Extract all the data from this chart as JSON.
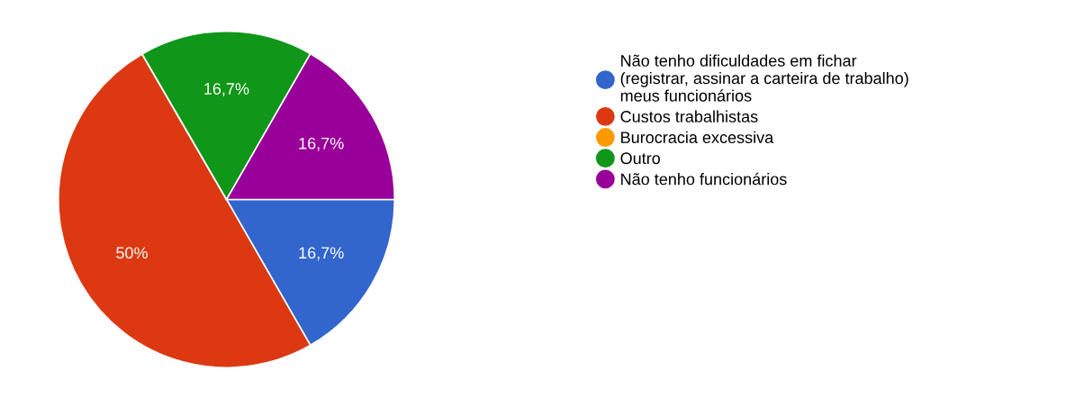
{
  "chart_data": {
    "type": "pie",
    "categories": [
      "Não tenho dificuldades em fichar\n(registrar, assinar a carteira de trabalho)\nmeus funcionários",
      "Custos trabalhistas",
      "Burocracia excessiva",
      "Outro",
      "Não tenho funcionários"
    ],
    "values": [
      16.7,
      50,
      0,
      16.7,
      16.7
    ],
    "value_labels": [
      "16,7%",
      "50%",
      null,
      "16,7%",
      "16,7%"
    ],
    "colors": [
      "#3366cc",
      "#dc3912",
      "#ff9900",
      "#109618",
      "#990099"
    ],
    "legend": "right"
  }
}
